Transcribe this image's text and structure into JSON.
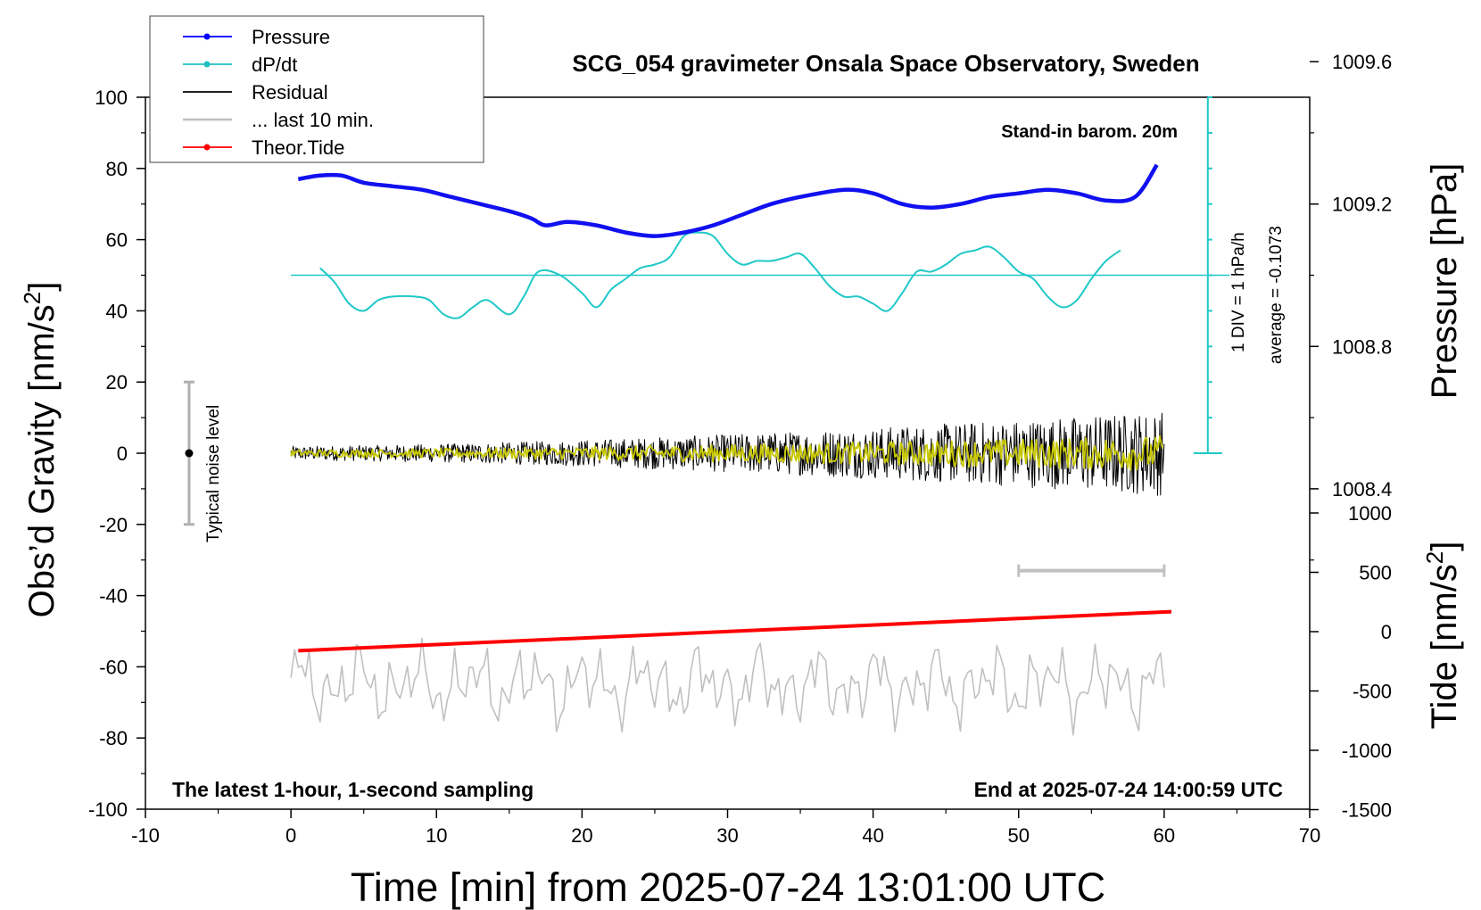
{
  "chart_data": {
    "type": "line",
    "title": "SCG_054 gravimeter Onsala Space Observatory, Sweden",
    "xlabel": "Time [min] from 2025-07-24 13:01:00 UTC",
    "ylabel_left": "Obs’d Gravity [nm/s",
    "ylabel_left_sup": "2",
    "ylabel_left_close": "]",
    "ylabel_right_top": "Pressure [hPa]",
    "ylabel_right_bottom": "Tide [nm/s",
    "ylabel_right_bottom_sup": "2",
    "ylabel_right_bottom_close": "]",
    "xlim": [
      -10,
      70
    ],
    "ylim_left": [
      -100,
      100
    ],
    "ylim_pressure": [
      1008.0,
      1010.0
    ],
    "ylim_tide": [
      -1500,
      1500
    ],
    "x_ticks": [
      "-10",
      "0",
      "10",
      "20",
      "30",
      "40",
      "50",
      "60",
      "70"
    ],
    "y_ticks_left": [
      "-100",
      "-80",
      "-60",
      "-40",
      "-20",
      "0",
      "20",
      "40",
      "60",
      "80",
      "100"
    ],
    "y_ticks_pressure": [
      "1008.4",
      "1008.8",
      "1009.2",
      "1009.6"
    ],
    "y_ticks_tide": [
      "-1500",
      "-1000",
      "-500",
      "0",
      "500",
      "1000"
    ],
    "annotations": {
      "barometer": "Stand-in barom. 20m",
      "dpdt_scale": "1 DIV = 1 hPa/h",
      "dpdt_average": "average = -0.1073",
      "noise": "Typical noise level",
      "bottom_left": "The latest 1-hour, 1-second sampling",
      "bottom_right": "End at 2025-07-24 14:00:59 UTC"
    },
    "legend": [
      {
        "name": "Pressure",
        "color": "#0000ff",
        "style": "line-dot"
      },
      {
        "name": "dP/dt",
        "color": "#20c0c0",
        "style": "line-dot"
      },
      {
        "name": "Residual",
        "color": "#000000",
        "style": "line"
      },
      {
        "name": "... last 10 min.",
        "color": "#c0c0c0",
        "style": "line"
      },
      {
        "name": "Theor.Tide",
        "color": "#ff0000",
        "style": "line-dot"
      }
    ],
    "legend_position": "top-left",
    "series": [
      {
        "name": "Pressure",
        "axis": "pressure",
        "color": "#1010f0",
        "x": [
          0.5,
          2,
          3.5,
          5,
          7,
          9,
          11,
          13,
          15,
          16.5,
          17.5,
          19,
          21,
          23,
          25,
          27,
          29,
          31,
          33,
          35,
          38,
          40,
          42,
          44,
          46,
          48,
          50,
          52,
          54,
          56,
          58,
          59.5
        ],
        "values": [
          1009.27,
          1009.28,
          1009.28,
          1009.26,
          1009.25,
          1009.24,
          1009.22,
          1009.2,
          1009.18,
          1009.16,
          1009.14,
          1009.15,
          1009.14,
          1009.12,
          1009.11,
          1009.12,
          1009.14,
          1009.17,
          1009.2,
          1009.22,
          1009.24,
          1009.23,
          1009.2,
          1009.19,
          1009.2,
          1009.22,
          1009.23,
          1009.24,
          1009.23,
          1009.21,
          1009.22,
          1009.31
        ]
      },
      {
        "name": "dP/dt",
        "axis": "left",
        "color": "#20c8c8",
        "x": [
          2,
          3,
          4,
          5,
          6,
          7,
          8.5,
          9.5,
          10.5,
          11.5,
          12.5,
          13.5,
          15,
          16,
          17,
          18.5,
          20,
          21,
          22,
          23,
          24,
          25,
          26,
          27,
          28,
          29,
          30,
          31,
          32,
          33,
          34,
          35,
          36,
          37,
          38,
          39,
          40,
          41,
          42,
          43,
          44,
          45,
          46,
          47,
          48,
          49,
          50,
          51,
          52,
          53,
          54,
          55,
          56,
          57
        ],
        "values": [
          52,
          48,
          42,
          40,
          43,
          44,
          44,
          43,
          39,
          38,
          41,
          43,
          39,
          44,
          51,
          50,
          45,
          41,
          46,
          49,
          52,
          53,
          55,
          61,
          62,
          61,
          56,
          53,
          54,
          54,
          55,
          56,
          52,
          47,
          44,
          44,
          42,
          40,
          45,
          51,
          51,
          53,
          56,
          57,
          58,
          55,
          51,
          49,
          44,
          41,
          43,
          49,
          54,
          57
        ]
      },
      {
        "name": "dP/dt average",
        "axis": "left",
        "color": "#20c8c8",
        "x": [
          0,
          64.5
        ],
        "values": [
          50,
          50
        ]
      },
      {
        "name": "Residual",
        "axis": "left",
        "color": "#000000",
        "x": [
          0,
          60
        ],
        "amplitude_start": 2,
        "amplitude_end": 12,
        "note": "1-second noisy residual around 0, amplitude grows toward the end"
      },
      {
        "name": "Residual filtered",
        "axis": "left",
        "color": "#c8c800",
        "x": [
          0,
          60
        ],
        "amplitude_start": 1,
        "amplitude_end": 5
      },
      {
        "name": "... last 10 min.",
        "axis": "left",
        "color": "#c0c0c0",
        "x": [
          0,
          60
        ],
        "center": -65,
        "min": -81,
        "max": -52
      },
      {
        "name": "Theor.Tide",
        "axis": "left",
        "color": "#ff0000",
        "x": [
          0.5,
          60.5
        ],
        "values": [
          -55.5,
          -44.5
        ]
      }
    ],
    "dpdt_scale_bar": {
      "x": 63,
      "y_from": 0,
      "y_to": 100
    },
    "noise_bar": {
      "x": -7,
      "y": 0,
      "y_from": -20,
      "y_to": 20
    },
    "last10_bar": {
      "x_from": 50,
      "x_to": 60,
      "y": -33
    }
  }
}
